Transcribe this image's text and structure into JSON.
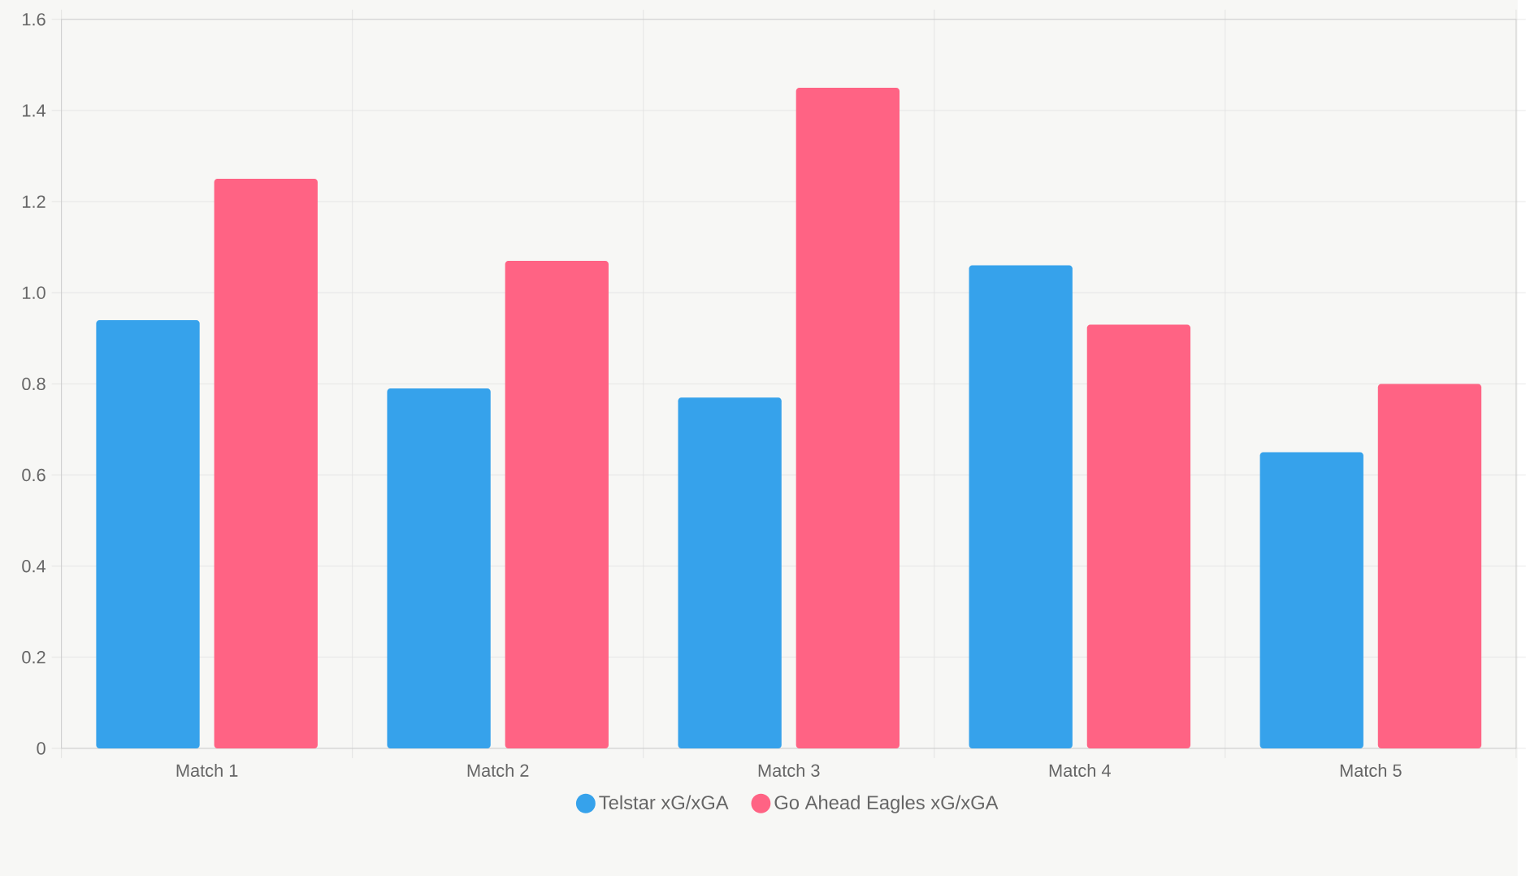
{
  "chart_data": {
    "type": "bar",
    "categories": [
      "Match 1",
      "Match 2",
      "Match 3",
      "Match 4",
      "Match 5"
    ],
    "series": [
      {
        "name": "Telstar xG/xGA",
        "color": "#36a2eb",
        "values": [
          0.94,
          0.79,
          0.77,
          1.06,
          0.65
        ]
      },
      {
        "name": "Go Ahead Eagles xG/xGA",
        "color": "#ff6384",
        "values": [
          1.25,
          1.07,
          1.45,
          0.93,
          0.8
        ]
      }
    ],
    "ylim": [
      0,
      1.6
    ],
    "yticks": [
      0,
      0.2,
      0.4,
      0.6,
      0.8,
      {
        "value": 1,
        "label": "1.0"
      },
      1.2,
      1.4,
      1.6
    ],
    "grid": true,
    "legend": "bottom"
  }
}
